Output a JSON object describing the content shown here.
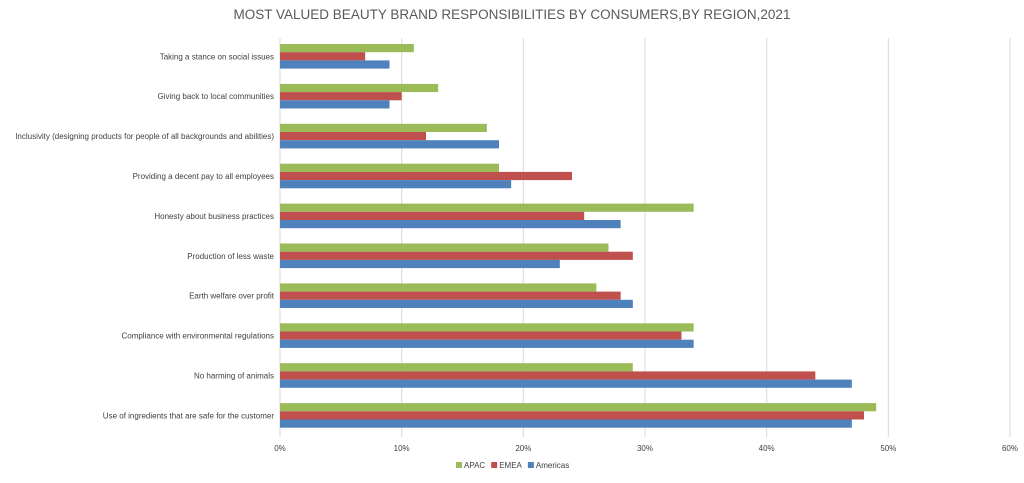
{
  "chart_data": {
    "type": "bar",
    "orientation": "horizontal",
    "title": "MOST VALUED BEAUTY BRAND RESPONSIBILITIES BY CONSUMERS,BY REGION,2021",
    "xlabel": "",
    "ylabel": "",
    "xlim": [
      0,
      0.6
    ],
    "x_tick_labels": [
      "0%",
      "10%",
      "20%",
      "30%",
      "40%",
      "50%",
      "60%"
    ],
    "grid": true,
    "legend_position": "bottom",
    "categories": [
      "Taking a stance on social issues",
      "Giving back to local communities",
      "Inclusivity (designing products for people of all backgrounds and abilities)",
      "Providing a decent pay to all employees",
      "Honesty about business practices",
      "Production of less waste",
      "Earth welfare over profit",
      "Compliance with environmental regulations",
      "No harming of animals",
      "Use of ingredients that are safe for the customer"
    ],
    "series": [
      {
        "name": "APAC",
        "color": "#9bbb59",
        "values": [
          0.11,
          0.13,
          0.17,
          0.18,
          0.34,
          0.27,
          0.26,
          0.34,
          0.29,
          0.49
        ]
      },
      {
        "name": "EMEA",
        "color": "#c0504d",
        "values": [
          0.07,
          0.1,
          0.12,
          0.24,
          0.25,
          0.29,
          0.28,
          0.33,
          0.44,
          0.48
        ]
      },
      {
        "name": "Americas",
        "color": "#4f81bd",
        "values": [
          0.09,
          0.09,
          0.18,
          0.19,
          0.28,
          0.23,
          0.29,
          0.34,
          0.47,
          0.47
        ]
      }
    ]
  }
}
